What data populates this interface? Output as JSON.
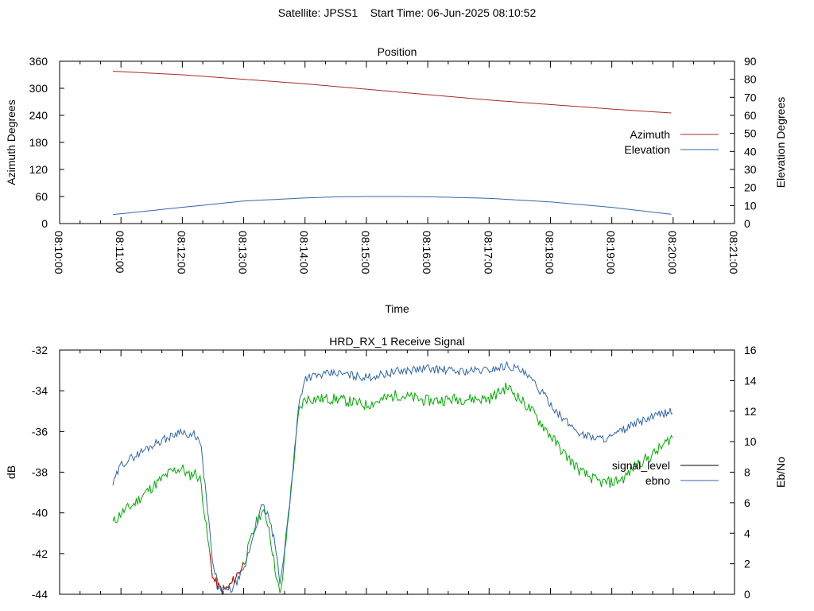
{
  "header": {
    "satellite_label": "Satellite: JPSS1",
    "start_time_label": "Start Time: 06-Jun-2025 08:10:52"
  },
  "colors": {
    "azimuth": "#a52a2a",
    "elevation": "#3366aa",
    "signal_level": "#000000",
    "ebno": "#3366aa",
    "signal_green": "#00aa00",
    "signal_red": "#cc0000",
    "grid": "#000000"
  },
  "chart_data": [
    {
      "type": "line",
      "title": "Position",
      "xlabel": "Time",
      "ylabel": "Azimuth Degrees",
      "y2label": "Elevation Degrees",
      "xticks": [
        "08:10:00",
        "08:11:00",
        "08:12:00",
        "08:13:00",
        "08:14:00",
        "08:15:00",
        "08:16:00",
        "08:17:00",
        "08:18:00",
        "08:19:00",
        "08:20:00",
        "08:21:00"
      ],
      "xlim_minutes": [
        0,
        11
      ],
      "ylim": [
        0,
        360
      ],
      "yticks": [
        "0",
        "60",
        "120",
        "180",
        "240",
        "300",
        "360"
      ],
      "y2lim": [
        0,
        90
      ],
      "y2ticks": [
        "0",
        "10",
        "20",
        "30",
        "40",
        "50",
        "60",
        "70",
        "80",
        "90"
      ],
      "legend_position": "right",
      "series": [
        {
          "name": "Azimuth",
          "axis": "y",
          "x_minutes": [
            0.87,
            2,
            3,
            4,
            5,
            6,
            7,
            8,
            9,
            10
          ],
          "values": [
            338,
            330,
            320,
            310,
            298,
            286,
            274,
            264,
            254,
            245
          ]
        },
        {
          "name": "Elevation",
          "axis": "y2",
          "x_minutes": [
            0.87,
            2,
            3,
            4,
            4.5,
            5,
            5.5,
            6,
            7,
            8,
            9,
            10
          ],
          "values": [
            5,
            9,
            12.5,
            14.2,
            14.8,
            15,
            15,
            14.9,
            14,
            12,
            9,
            5
          ]
        }
      ]
    },
    {
      "type": "line",
      "title": "HRD_RX_1 Receive Signal",
      "ylabel": "dB",
      "y2label": "Eb/No",
      "ylim": [
        -44,
        -32
      ],
      "yticks": [
        "-44",
        "-42",
        "-40",
        "-38",
        "-36",
        "-34",
        "-32"
      ],
      "y2lim": [
        0,
        16
      ],
      "y2ticks": [
        "0",
        "2",
        "4",
        "6",
        "8",
        "10",
        "12",
        "14",
        "16"
      ],
      "xlim_minutes": [
        0,
        11
      ],
      "legend_position": "right",
      "series": [
        {
          "name": "signal_level",
          "axis": "y",
          "x_minutes": [
            0.87,
            1.0,
            1.2,
            1.4,
            1.6,
            1.8,
            2.0,
            2.1,
            2.2,
            2.3,
            2.4,
            2.5,
            2.6,
            2.7,
            2.8,
            3.0,
            3.1,
            3.2,
            3.3,
            3.4,
            3.5,
            3.6,
            3.75,
            3.9,
            4.0,
            4.5,
            5.0,
            5.5,
            6.0,
            6.5,
            7.0,
            7.3,
            7.5,
            7.7,
            8.0,
            8.2,
            8.5,
            8.8,
            9.0,
            9.2,
            9.4,
            9.6,
            9.8,
            10.0
          ],
          "values": [
            -40.5,
            -40.0,
            -39.6,
            -39.0,
            -38.5,
            -38.0,
            -37.8,
            -38.2,
            -38.0,
            -38.4,
            -41.0,
            -43.2,
            -43.7,
            -43.8,
            -43.5,
            -42.5,
            -41.5,
            -40.5,
            -39.9,
            -40.5,
            -42.5,
            -44.2,
            -39.5,
            -35.0,
            -34.4,
            -34.4,
            -34.7,
            -34.2,
            -34.5,
            -34.4,
            -34.4,
            -33.8,
            -34.4,
            -35.0,
            -36.2,
            -37.0,
            -38.0,
            -38.5,
            -38.5,
            -38.3,
            -37.6,
            -37.3,
            -36.8,
            -36.2
          ]
        },
        {
          "name": "ebno",
          "axis": "y2",
          "x_minutes": [
            0.87,
            1.0,
            1.2,
            1.4,
            1.6,
            1.8,
            2.0,
            2.1,
            2.2,
            2.3,
            2.4,
            2.5,
            2.6,
            2.7,
            2.8,
            3.0,
            3.1,
            3.2,
            3.3,
            3.4,
            3.5,
            3.6,
            3.75,
            3.9,
            4.0,
            4.5,
            5.0,
            5.5,
            6.0,
            6.5,
            7.0,
            7.3,
            7.5,
            7.7,
            8.0,
            8.2,
            8.5,
            8.8,
            9.0,
            9.2,
            9.4,
            9.6,
            9.8,
            10.0
          ],
          "values": [
            7.2,
            8.5,
            9.0,
            9.5,
            10.0,
            10.3,
            10.8,
            10.2,
            10.5,
            9.8,
            6.0,
            1.8,
            0.4,
            0.2,
            0.3,
            1.5,
            3.0,
            4.5,
            5.8,
            5.2,
            3.5,
            0.6,
            6.0,
            12.5,
            14.2,
            14.5,
            14.2,
            14.6,
            14.8,
            14.6,
            14.7,
            15.0,
            14.7,
            14.0,
            12.5,
            11.5,
            10.5,
            10.2,
            10.3,
            10.8,
            11.2,
            11.5,
            11.8,
            12.0
          ]
        }
      ]
    }
  ]
}
